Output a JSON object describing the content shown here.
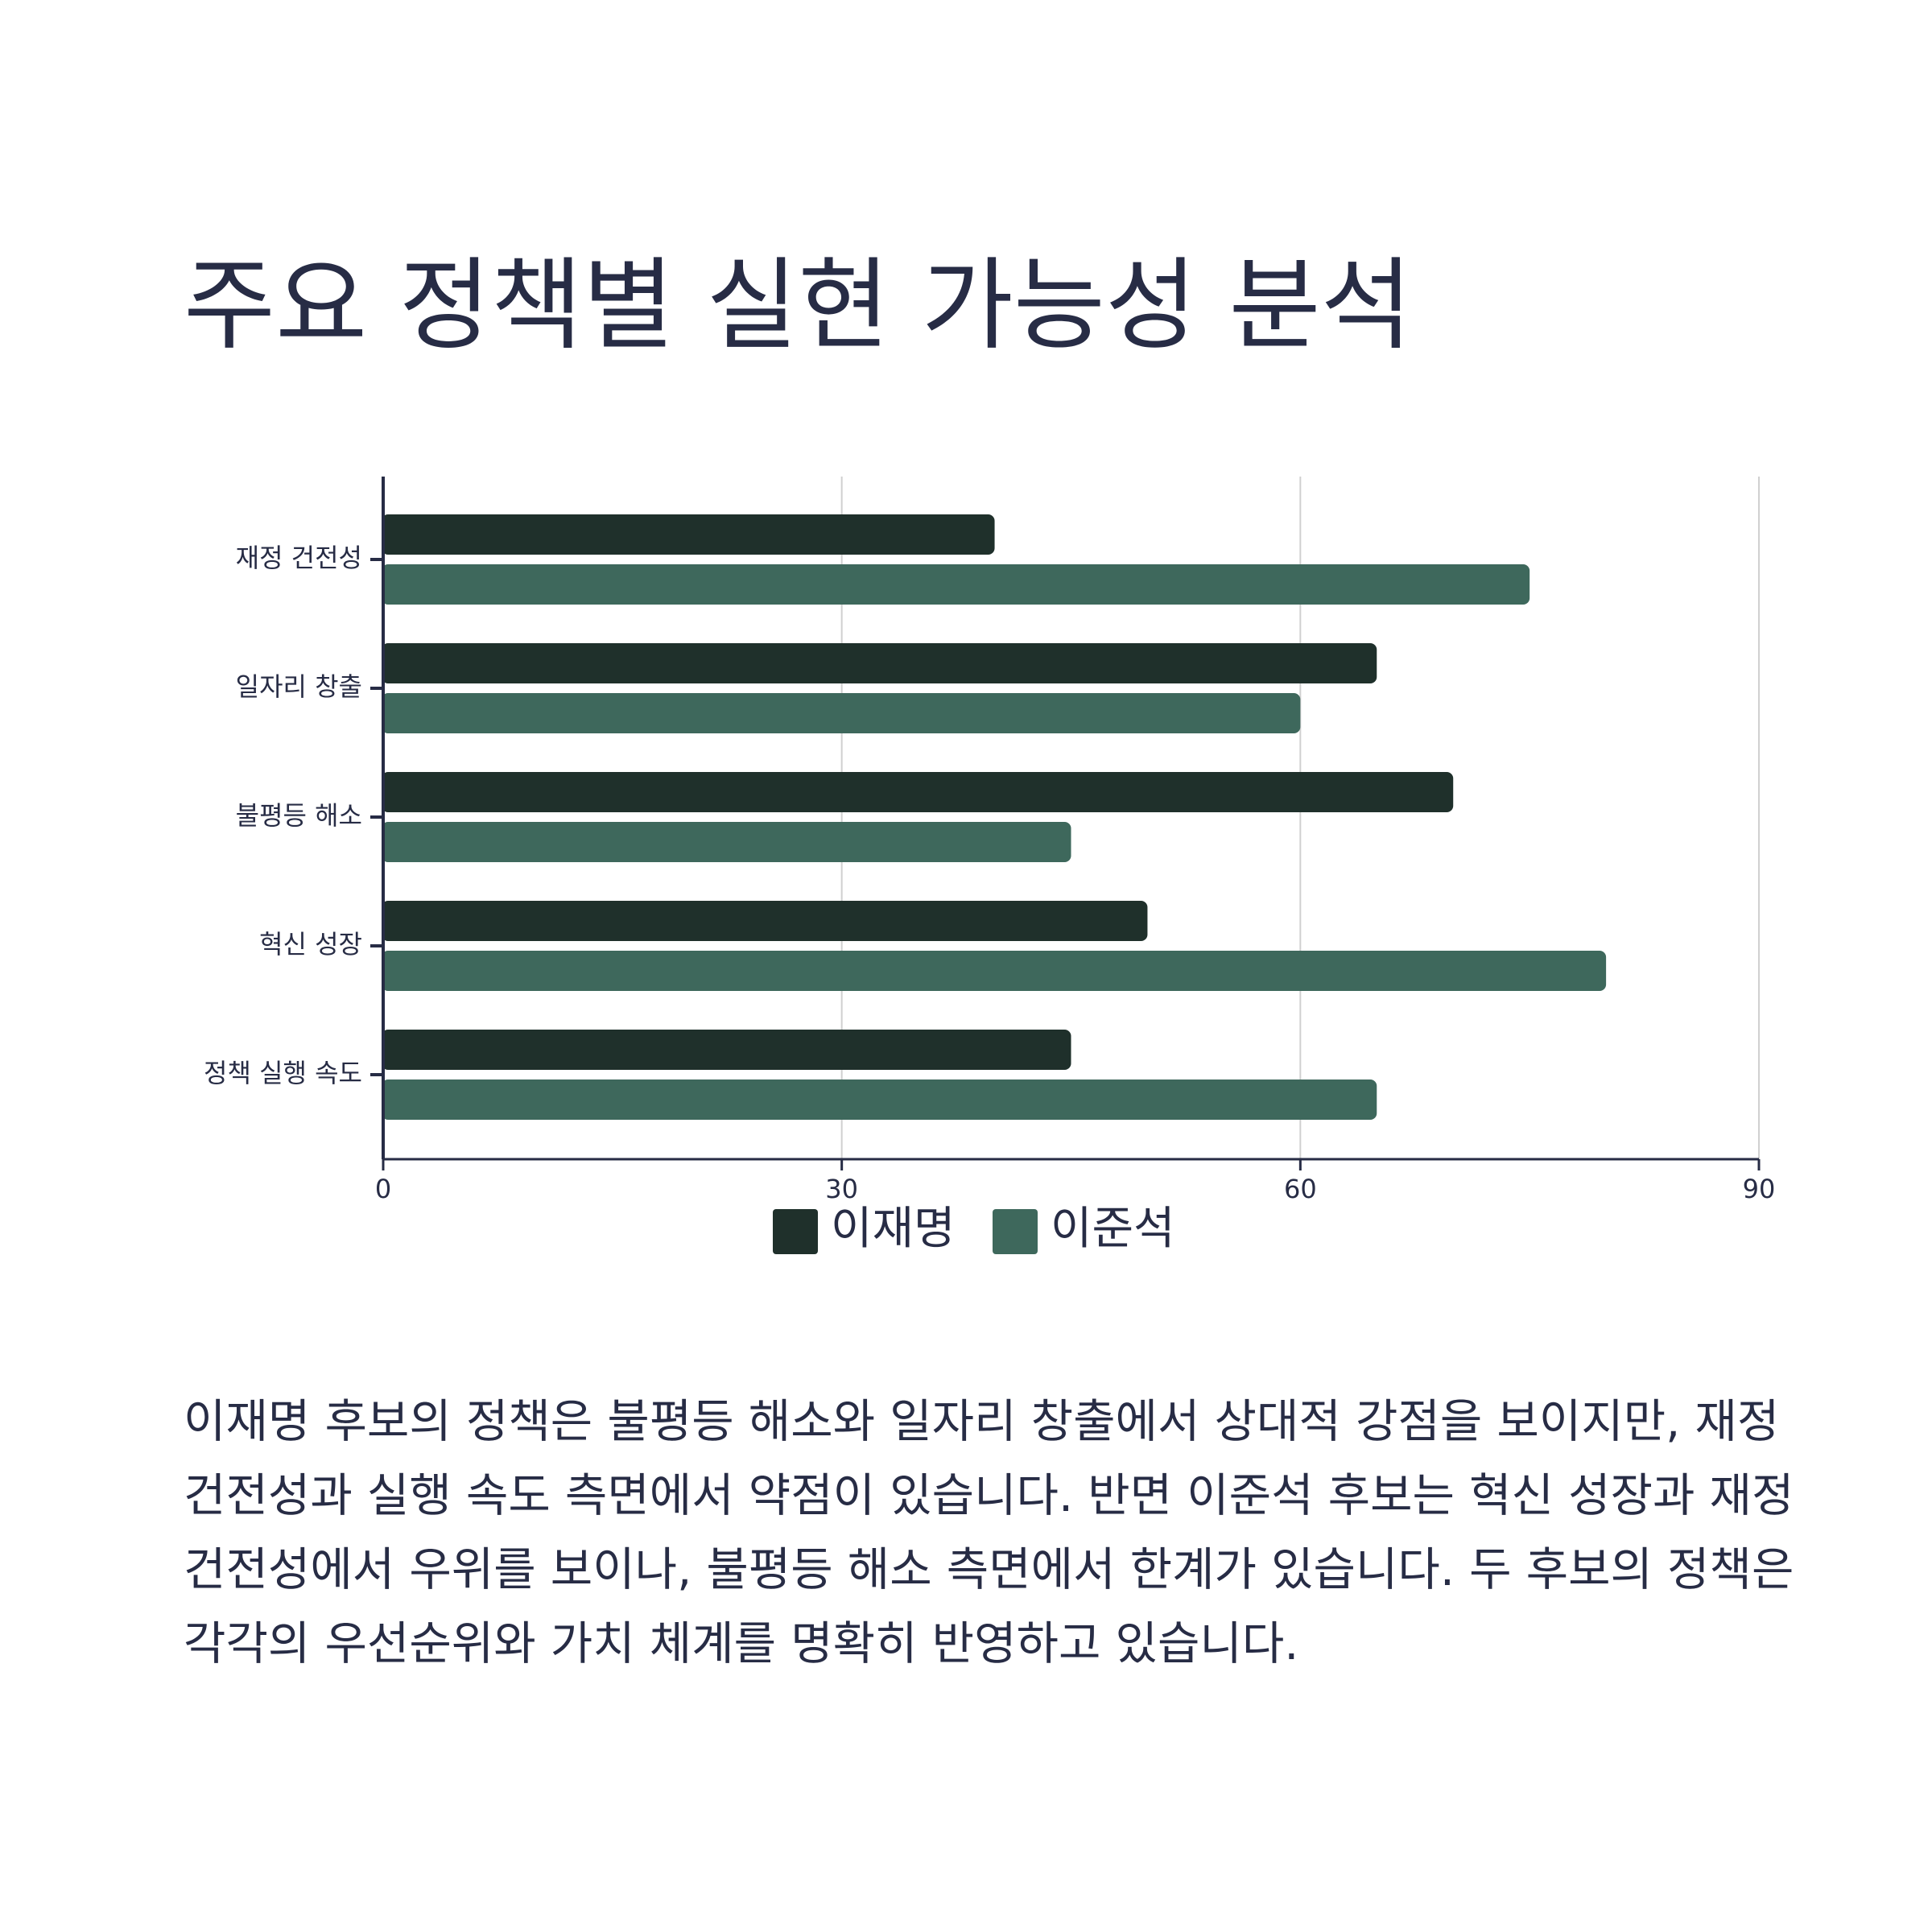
{
  "title": "주요 정책별 실현 가능성 분석",
  "description": "이재명 후보의 정책은 불평등 해소와 일자리 창출에서 상대적 강점을 보이지만, 재정 건전성과 실행 속도 측면에서 약점이 있습니다. 반면 이준석 후보는 혁신 성장과 재정 건전성에서 우위를 보이나, 불평등 해소 측면에서 한계가 있습니다. 두 후보의 정책은 각각의 우선순위와 가치 체계를 명확히 반영하고 있습니다.",
  "colors": {
    "series_1": "#1f302b",
    "series_2": "#3e685c",
    "axis": "#272c45",
    "grid": "#d0d0d0",
    "text": "#272c45"
  },
  "chart_data": {
    "type": "bar",
    "orientation": "horizontal",
    "categories": [
      "재정 건전성",
      "일자리 창출",
      "불평등 해소",
      "혁신 성장",
      "정책 실행 속도"
    ],
    "series": [
      {
        "name": "이재명",
        "values": [
          40,
          65,
          70,
          50,
          45
        ]
      },
      {
        "name": "이준석",
        "values": [
          75,
          60,
          45,
          80,
          65
        ]
      }
    ],
    "xlim": [
      0,
      90
    ],
    "xticks": [
      "0",
      "30",
      "60",
      "90"
    ],
    "grid": "vertical",
    "legend_position": "bottom-center"
  }
}
